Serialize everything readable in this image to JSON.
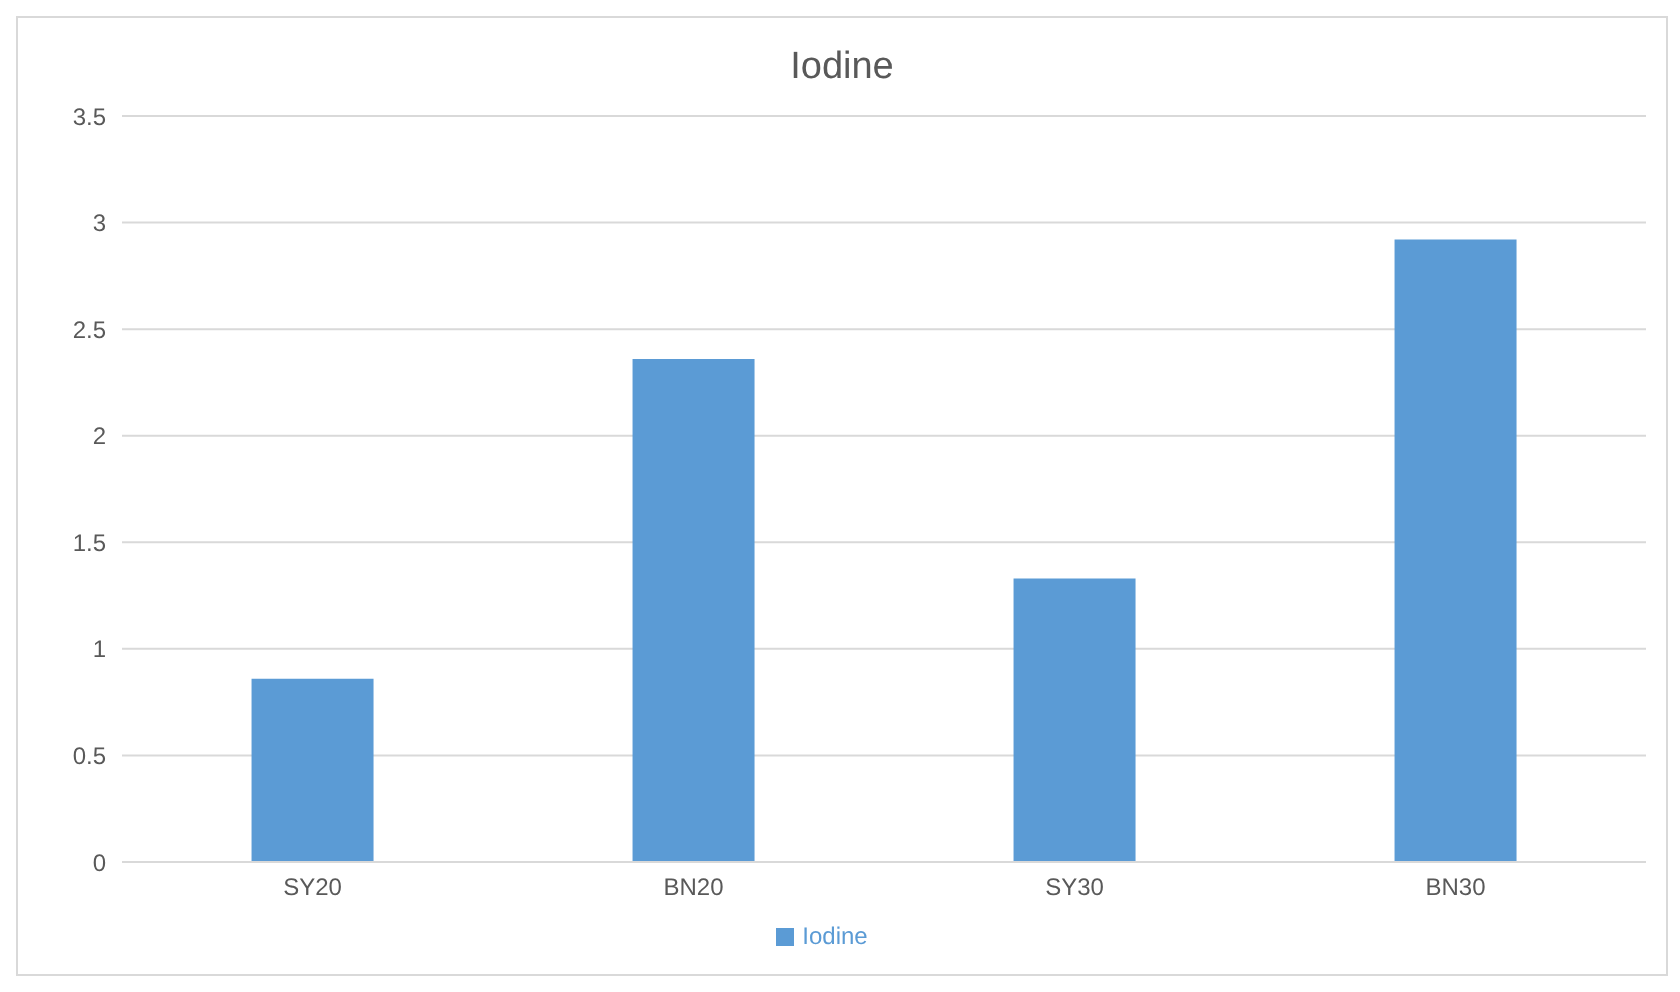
{
  "chart_data": {
    "type": "bar",
    "title": "Iodine",
    "categories": [
      "SY20",
      "BN20",
      "SY30",
      "BN30"
    ],
    "series": [
      {
        "name": "Iodine",
        "color": "#5b9bd5",
        "values": [
          0.86,
          2.36,
          1.33,
          2.92
        ]
      }
    ],
    "ylim": [
      0,
      3.5
    ],
    "yticks": [
      0,
      0.5,
      1,
      1.5,
      2,
      2.5,
      3,
      3.5
    ],
    "grid": "y",
    "legend": "bottom"
  }
}
